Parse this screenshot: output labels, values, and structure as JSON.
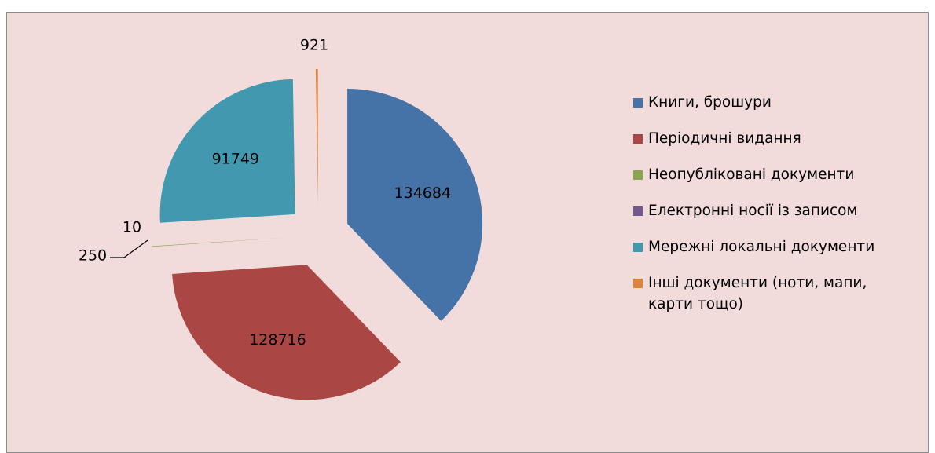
{
  "chart_data": {
    "type": "pie",
    "categories": [
      "Книги, брошури",
      "Періодичні видання",
      "Неопубліковані документи",
      "Електронні носії із записом",
      "Мережні локальні документи",
      "Інші документи (ноти, мапи, карти тощо)"
    ],
    "values": [
      134684,
      128716,
      250,
      10,
      91749,
      921
    ],
    "colors": [
      "#4572a7",
      "#aa4643",
      "#89a54e",
      "#71588f",
      "#4198af",
      "#db843d"
    ],
    "legend": "right"
  }
}
